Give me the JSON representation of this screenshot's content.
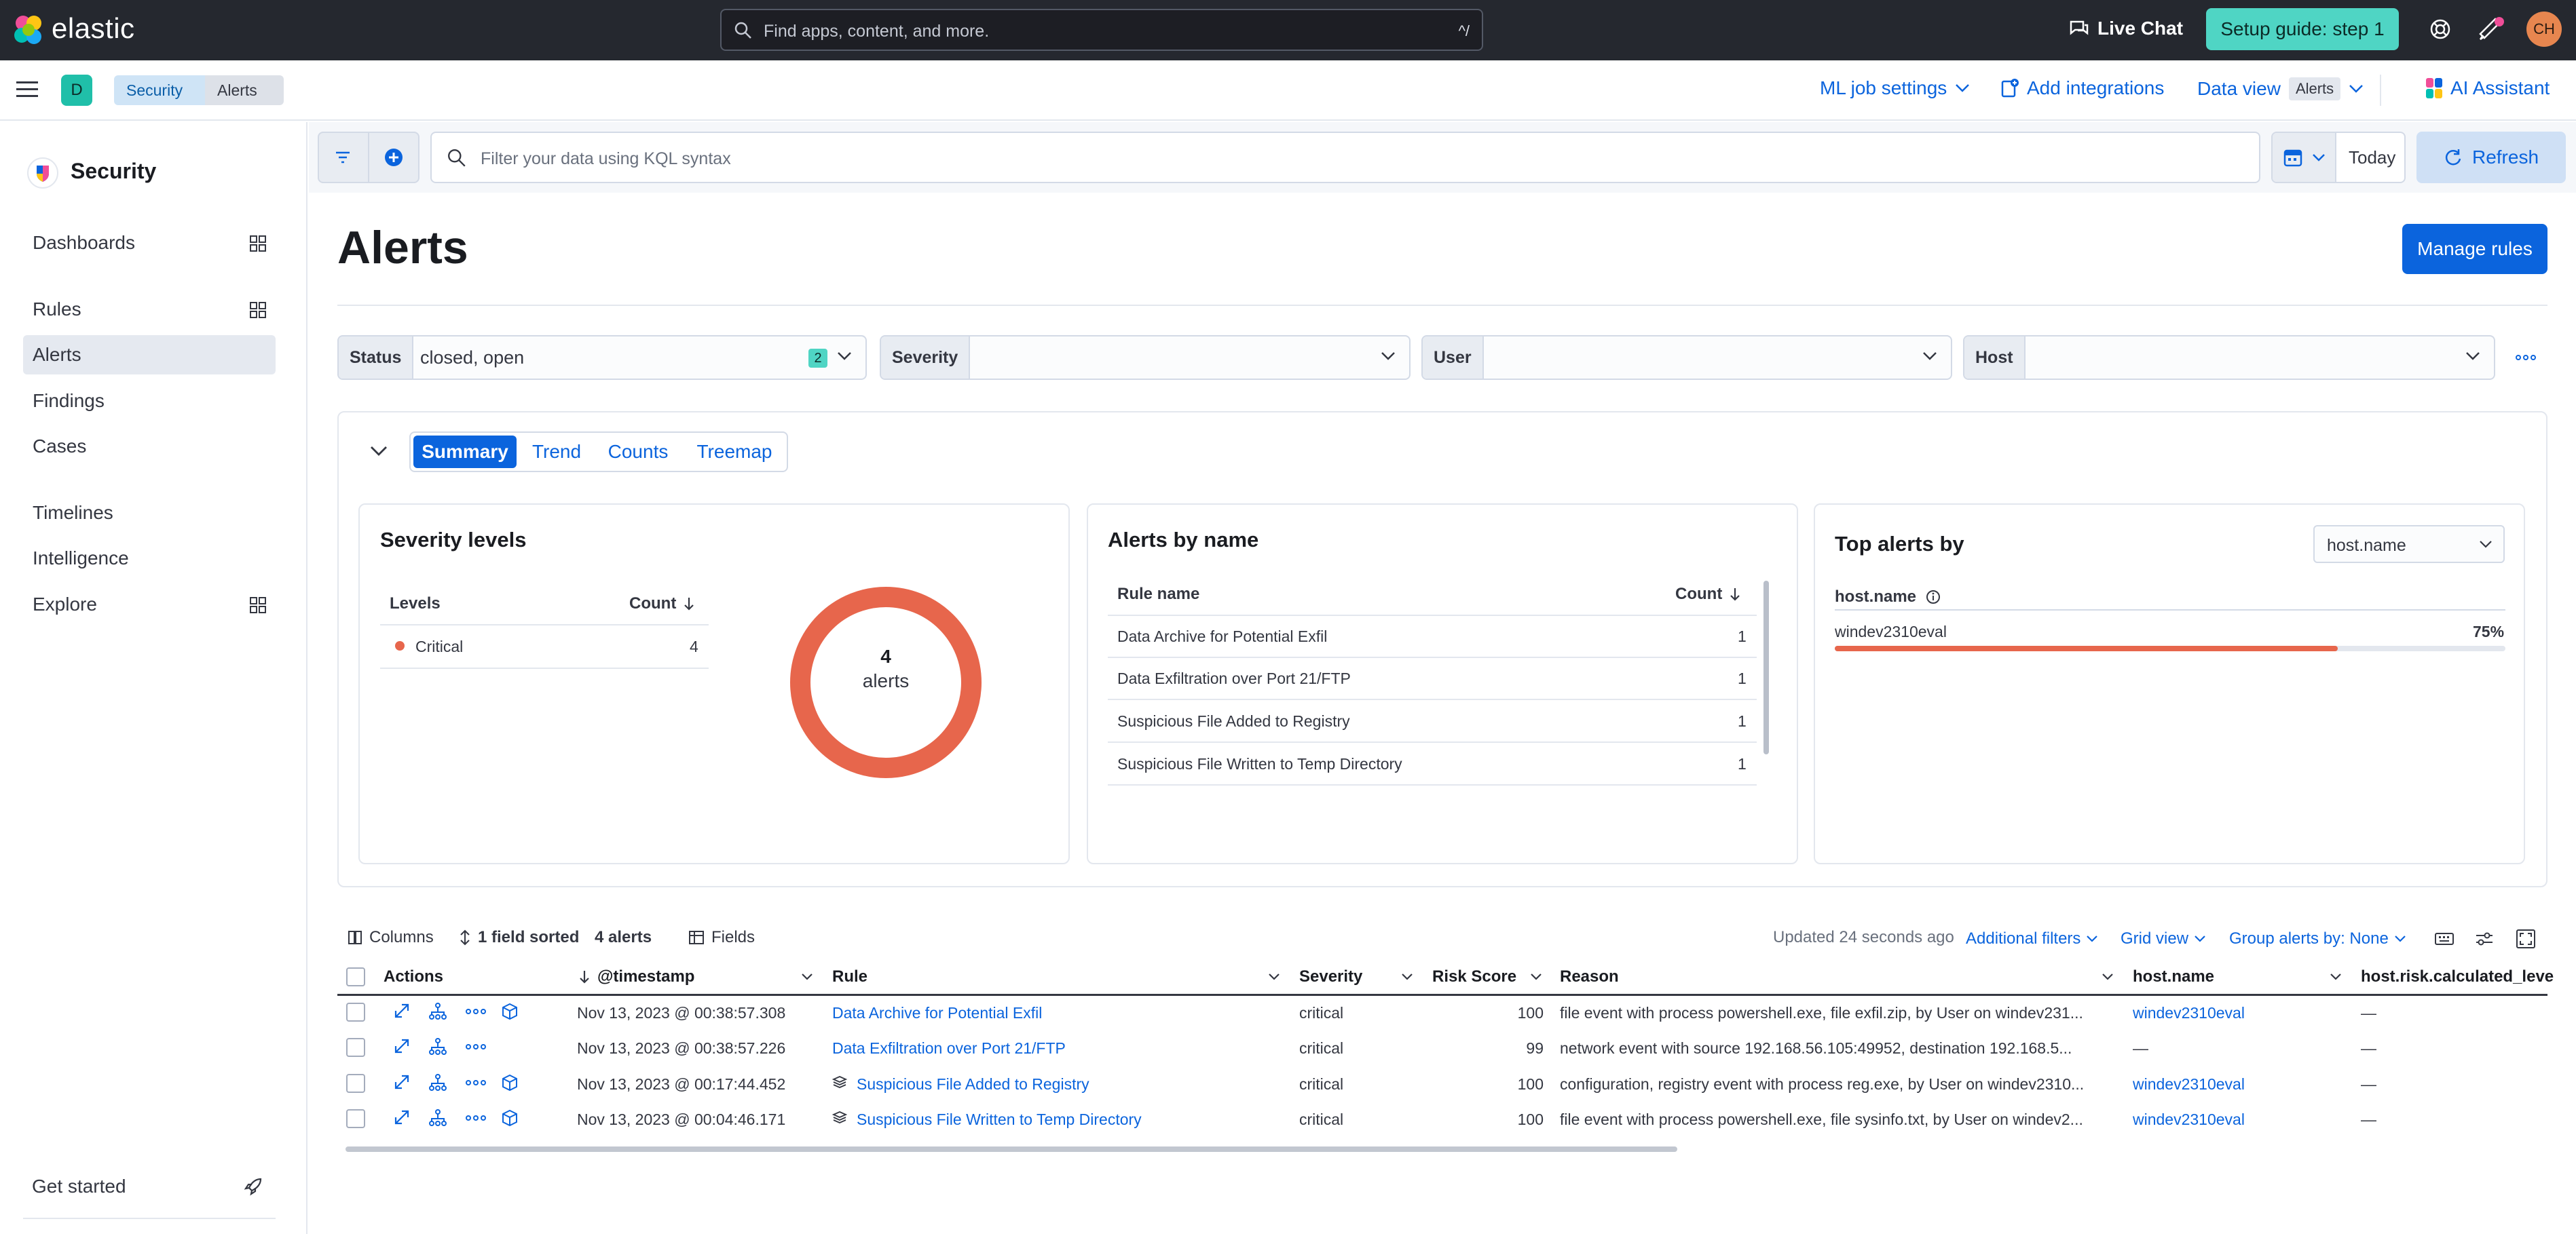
{
  "topbar": {
    "logo_text": "elastic",
    "search_placeholder": "Find apps, content, and more.",
    "search_shortcut": "^/",
    "live_chat": "Live Chat",
    "setup_guide": "Setup guide: step 1",
    "avatar_initials": "CH"
  },
  "subbar": {
    "space_letter": "D",
    "breadcrumbs": [
      "Security",
      "Alerts"
    ],
    "ml_job_settings": "ML job settings",
    "add_integrations": "Add integrations",
    "data_view_label": "Data view",
    "data_view_value": "Alerts",
    "ai_assistant": "AI Assistant"
  },
  "sidebar": {
    "title": "Security",
    "items": [
      {
        "label": "Dashboards"
      },
      {
        "label": "Rules"
      },
      {
        "label": "Alerts"
      },
      {
        "label": "Findings"
      },
      {
        "label": "Cases"
      },
      {
        "label": "Timelines"
      },
      {
        "label": "Intelligence"
      },
      {
        "label": "Explore"
      }
    ],
    "active_item": "Alerts",
    "get_started": "Get started"
  },
  "filterbar": {
    "kql_placeholder": "Filter your data using KQL syntax",
    "date_label": "Today",
    "refresh": "Refresh"
  },
  "page": {
    "title": "Alerts",
    "manage_rules": "Manage rules"
  },
  "controls": {
    "status_label": "Status",
    "status_value": "closed, open",
    "status_count": "2",
    "severity_label": "Severity",
    "user_label": "User",
    "host_label": "Host"
  },
  "summary": {
    "tabs": [
      "Summary",
      "Trend",
      "Counts",
      "Treemap"
    ],
    "active_tab": "Summary",
    "severity_card": {
      "title": "Severity levels",
      "col_levels": "Levels",
      "col_count": "Count",
      "rows": [
        {
          "level": "Critical",
          "count": "4",
          "color": "#e7664c"
        }
      ],
      "donut_value": "4",
      "donut_label": "alerts"
    },
    "alerts_by_name": {
      "title": "Alerts by name",
      "col_rule": "Rule name",
      "col_count": "Count",
      "rows": [
        {
          "name": "Data Archive for Potential Exfil",
          "count": "1"
        },
        {
          "name": "Data Exfiltration over Port 21/FTP",
          "count": "1"
        },
        {
          "name": "Suspicious File Added to Registry",
          "count": "1"
        },
        {
          "name": "Suspicious File Written to Temp Directory",
          "count": "1"
        }
      ]
    },
    "top_alerts": {
      "title": "Top alerts by",
      "select_value": "host.name",
      "field_label": "host.name",
      "rows": [
        {
          "name": "windev2310eval",
          "percent": "75%",
          "fraction": 0.75
        }
      ]
    }
  },
  "table": {
    "toolbar": {
      "columns": "Columns",
      "sorted": "1 field sorted",
      "alerts_count": "4 alerts",
      "fields": "Fields",
      "updated": "Updated 24 seconds ago",
      "additional_filters": "Additional filters",
      "grid_view": "Grid view",
      "group_alerts": "Group alerts by: None"
    },
    "headers": {
      "actions": "Actions",
      "timestamp": "@timestamp",
      "rule": "Rule",
      "severity": "Severity",
      "risk_score": "Risk Score",
      "reason": "Reason",
      "host_name": "host.name",
      "host_risk": "host.risk.calculated_leve"
    },
    "rows": [
      {
        "timestamp": "Nov 13, 2023 @ 00:38:57.308",
        "rule": "Data Archive for Potential Exfil",
        "rule_icon": false,
        "severity": "critical",
        "risk": "100",
        "reason": "file event with process powershell.exe, file exfil.zip, by User on windev231...",
        "host": "windev2310eval",
        "host_risk": "—",
        "has_analyzer": true
      },
      {
        "timestamp": "Nov 13, 2023 @ 00:38:57.226",
        "rule": "Data Exfiltration over Port 21/FTP",
        "rule_icon": false,
        "severity": "critical",
        "risk": "99",
        "reason": "network event with source 192.168.56.105:49952, destination 192.168.5...",
        "host": "—",
        "host_risk": "—",
        "has_analyzer": false
      },
      {
        "timestamp": "Nov 13, 2023 @ 00:17:44.452",
        "rule": "Suspicious File Added to Registry",
        "rule_icon": true,
        "severity": "critical",
        "risk": "100",
        "reason": "configuration, registry event with process reg.exe, by User on windev2310...",
        "host": "windev2310eval",
        "host_risk": "—",
        "has_analyzer": true
      },
      {
        "timestamp": "Nov 13, 2023 @ 00:04:46.171",
        "rule": "Suspicious File Written to Temp Directory",
        "rule_icon": true,
        "severity": "critical",
        "risk": "100",
        "reason": "file event with process powershell.exe, file sysinfo.txt, by User on windev2...",
        "host": "windev2310eval",
        "host_risk": "—",
        "has_analyzer": true
      }
    ]
  },
  "colors": {
    "accent": "#0b64dd",
    "critical": "#e7664c",
    "topbar": "#25282f",
    "teal": "#4fd5c4"
  }
}
